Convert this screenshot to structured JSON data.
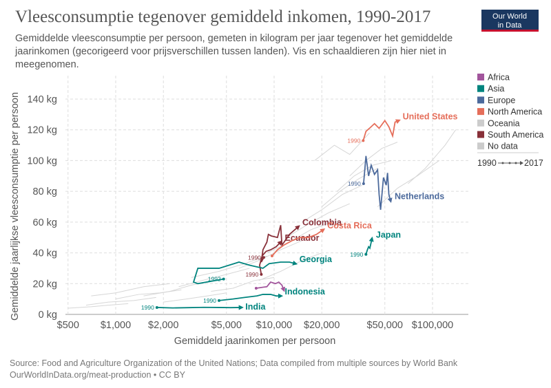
{
  "title": "Vleesconsumptie tegenover gemiddeld inkomen, 1990-2017",
  "subtitle_lines": [
    "Gemiddelde vleesconsumptie per persoon, gemeten in kilogram per jaar tegenover het gemiddelde",
    "jaarinkomen (gecorigeerd voor prijsverschillen tussen landen). Vis en schaaldieren zijn hier niet in",
    "meegenomen."
  ],
  "logo": {
    "line1": "Our World",
    "line2": "in Data",
    "bg": "#1a3760",
    "accent": "#c8102e"
  },
  "source_lines": [
    "Source: Food and Agriculture Organization of the United Nations; Data compiled from multiple sources by World Bank",
    "OurWorldInData.org/meat-production • CC BY"
  ],
  "legend": {
    "items": [
      {
        "label": "Africa",
        "color": "#a2559c"
      },
      {
        "label": "Asia",
        "color": "#00847e"
      },
      {
        "label": "Europe",
        "color": "#4c6a9c"
      },
      {
        "label": "North America",
        "color": "#e56e5a"
      },
      {
        "label": "Oceania",
        "color": "#cccccc",
        "muted": true
      },
      {
        "label": "South America",
        "color": "#883039"
      },
      {
        "label": "No data",
        "color": "#cccccc",
        "muted": true
      }
    ],
    "time_start": "1990",
    "time_end": "2017"
  },
  "chart_data": {
    "type": "line",
    "xlabel": "Gemiddeld jaarinkomen per persoon",
    "ylabel": "Gemiddelde jaarlijkse vleesconsumptie per persoon",
    "x_scale": "log",
    "xlim": [
      420,
      150000
    ],
    "ylim": [
      0,
      150
    ],
    "x_ticks": [
      500,
      1000,
      2000,
      5000,
      10000,
      20000,
      50000,
      100000
    ],
    "x_tick_labels": [
      "$500",
      "$1,000",
      "$2,000",
      "$5,000",
      "$10,000",
      "$20,000",
      "$50,000",
      "$100,000"
    ],
    "y_ticks": [
      0,
      20,
      40,
      60,
      80,
      100,
      120,
      140
    ],
    "y_tick_labels": [
      "0 kg",
      "20 kg",
      "40 kg",
      "60 kg",
      "80 kg",
      "100 kg",
      "120 kg",
      "140 kg"
    ],
    "grid": true,
    "legend_position": "right",
    "series": [
      {
        "name": "United States",
        "region": "North America",
        "start_label": "1990",
        "points": [
          [
            36500,
            113
          ],
          [
            38000,
            119
          ],
          [
            40000,
            121
          ],
          [
            43000,
            124
          ],
          [
            46000,
            121
          ],
          [
            50000,
            126
          ],
          [
            53000,
            122
          ],
          [
            56000,
            116
          ],
          [
            58000,
            125
          ],
          [
            61000,
            126
          ]
        ]
      },
      {
        "name": "Netherlands",
        "region": "Europe",
        "start_label": "1990",
        "points": [
          [
            36700,
            85
          ],
          [
            37500,
            96
          ],
          [
            38000,
            103
          ],
          [
            39500,
            90
          ],
          [
            41000,
            97
          ],
          [
            43000,
            91
          ],
          [
            45000,
            94
          ],
          [
            46000,
            78
          ],
          [
            47000,
            68
          ],
          [
            49000,
            89
          ],
          [
            51000,
            84
          ],
          [
            52000,
            92
          ],
          [
            53000,
            78
          ],
          [
            54300,
            74
          ]
        ]
      },
      {
        "name": "Japan",
        "region": "Asia",
        "start_label": "1990",
        "points": [
          [
            38000,
            39
          ],
          [
            38800,
            42
          ],
          [
            39500,
            44
          ],
          [
            40200,
            43
          ],
          [
            40800,
            46
          ],
          [
            41400,
            49
          ]
        ]
      },
      {
        "name": "Colombia",
        "region": "South America",
        "start_label": "1990",
        "points": [
          [
            8600,
            37
          ],
          [
            8300,
            34
          ],
          [
            8500,
            42
          ],
          [
            9000,
            47
          ],
          [
            9200,
            52
          ],
          [
            9600,
            51
          ],
          [
            10500,
            50
          ],
          [
            11000,
            58
          ],
          [
            11200,
            45
          ],
          [
            12500,
            52
          ],
          [
            14200,
            57
          ]
        ]
      },
      {
        "name": "Ecuador",
        "region": "South America",
        "start_label": "1990",
        "points": [
          [
            8300,
            26
          ],
          [
            8100,
            32
          ],
          [
            8400,
            38
          ],
          [
            8900,
            41
          ],
          [
            9500,
            42
          ],
          [
            10300,
            44
          ],
          [
            11000,
            47
          ]
        ]
      },
      {
        "name": "Costa Rica",
        "region": "North America",
        "start_label": "",
        "points": [
          [
            9700,
            38
          ],
          [
            10500,
            42
          ],
          [
            11500,
            45
          ],
          [
            13000,
            48
          ],
          [
            14500,
            50
          ],
          [
            16500,
            50
          ],
          [
            18500,
            52
          ],
          [
            20400,
            55
          ]
        ]
      },
      {
        "name": "Georgia",
        "region": "Asia",
        "start_label": "1992",
        "points": [
          [
            4800,
            23
          ],
          [
            3300,
            20
          ],
          [
            3100,
            21
          ],
          [
            3300,
            30
          ],
          [
            4500,
            30
          ],
          [
            6000,
            34
          ],
          [
            7000,
            32
          ],
          [
            8500,
            30
          ],
          [
            9300,
            33
          ],
          [
            11000,
            34
          ],
          [
            12500,
            34
          ],
          [
            13600,
            33
          ]
        ]
      },
      {
        "name": "Indonesia",
        "region": "Asia",
        "start_label": "1990",
        "points": [
          [
            4490,
            9
          ],
          [
            5500,
            10
          ],
          [
            6500,
            11
          ],
          [
            7800,
            12
          ],
          [
            8500,
            13
          ],
          [
            9500,
            13
          ],
          [
            10300,
            12
          ],
          [
            11000,
            12
          ]
        ]
      },
      {
        "name": "India",
        "region": "Asia",
        "start_label": "1990",
        "points": [
          [
            1820,
            4.5
          ],
          [
            2300,
            4.2
          ],
          [
            2900,
            4.4
          ],
          [
            3600,
            4.6
          ],
          [
            4400,
            4.5
          ],
          [
            5300,
            4.4
          ],
          [
            6200,
            4.5
          ]
        ]
      },
      {
        "name": "",
        "region": "Africa",
        "start_label": "",
        "points": [
          [
            7700,
            17
          ],
          [
            8300,
            17.5
          ],
          [
            9000,
            18
          ],
          [
            9500,
            21
          ],
          [
            10200,
            20
          ],
          [
            10700,
            21
          ],
          [
            11200,
            19
          ],
          [
            11500,
            16
          ]
        ]
      }
    ],
    "other_series": [
      [
        [
          500,
          4
        ],
        [
          700,
          5
        ],
        [
          900,
          6
        ],
        [
          1200,
          7
        ]
      ],
      [
        [
          650,
          6
        ],
        [
          900,
          8
        ],
        [
          1300,
          9
        ],
        [
          1800,
          11
        ]
      ],
      [
        [
          1000,
          10
        ],
        [
          1400,
          13
        ],
        [
          1900,
          14
        ],
        [
          2600,
          16
        ]
      ],
      [
        [
          1500,
          12
        ],
        [
          2200,
          15
        ],
        [
          3000,
          19
        ],
        [
          4200,
          22
        ]
      ],
      [
        [
          2500,
          18
        ],
        [
          3500,
          22
        ],
        [
          5000,
          26
        ],
        [
          7000,
          30
        ]
      ],
      [
        [
          3000,
          24
        ],
        [
          4500,
          28
        ],
        [
          6500,
          33
        ],
        [
          9000,
          38
        ]
      ],
      [
        [
          6000,
          30
        ],
        [
          8000,
          35
        ],
        [
          11000,
          42
        ],
        [
          15000,
          48
        ]
      ],
      [
        [
          9000,
          40
        ],
        [
          12000,
          46
        ],
        [
          17000,
          55
        ],
        [
          23000,
          60
        ]
      ],
      [
        [
          12000,
          50
        ],
        [
          16000,
          58
        ],
        [
          22000,
          66
        ],
        [
          30000,
          72
        ]
      ],
      [
        [
          15000,
          60
        ],
        [
          20000,
          68
        ],
        [
          27000,
          78
        ],
        [
          36000,
          84
        ]
      ],
      [
        [
          20000,
          70
        ],
        [
          26000,
          80
        ],
        [
          34000,
          88
        ],
        [
          45000,
          95
        ]
      ],
      [
        [
          25000,
          80
        ],
        [
          32000,
          90
        ],
        [
          42000,
          97
        ],
        [
          55000,
          100
        ]
      ],
      [
        [
          30000,
          90
        ],
        [
          38000,
          100
        ],
        [
          48000,
          108
        ],
        [
          60000,
          112
        ]
      ],
      [
        [
          45000,
          70
        ],
        [
          60000,
          82
        ],
        [
          80000,
          90
        ],
        [
          110000,
          100
        ]
      ],
      [
        [
          70000,
          85
        ],
        [
          90000,
          95
        ],
        [
          120000,
          110
        ],
        [
          140000,
          120
        ]
      ],
      [
        [
          700,
          12
        ],
        [
          1000,
          14
        ],
        [
          1500,
          18
        ],
        [
          2200,
          20
        ]
      ],
      [
        [
          4000,
          15
        ],
        [
          5500,
          17
        ],
        [
          7500,
          22
        ],
        [
          10000,
          24
        ]
      ],
      [
        [
          18000,
          100
        ],
        [
          24000,
          110
        ],
        [
          30000,
          104
        ],
        [
          40000,
          118
        ]
      ],
      [
        [
          2000,
          8
        ],
        [
          2800,
          10
        ],
        [
          3800,
          12
        ],
        [
          5000,
          14
        ]
      ],
      [
        [
          8000,
          22
        ],
        [
          11000,
          28
        ],
        [
          15000,
          35
        ],
        [
          20000,
          40
        ]
      ]
    ]
  }
}
